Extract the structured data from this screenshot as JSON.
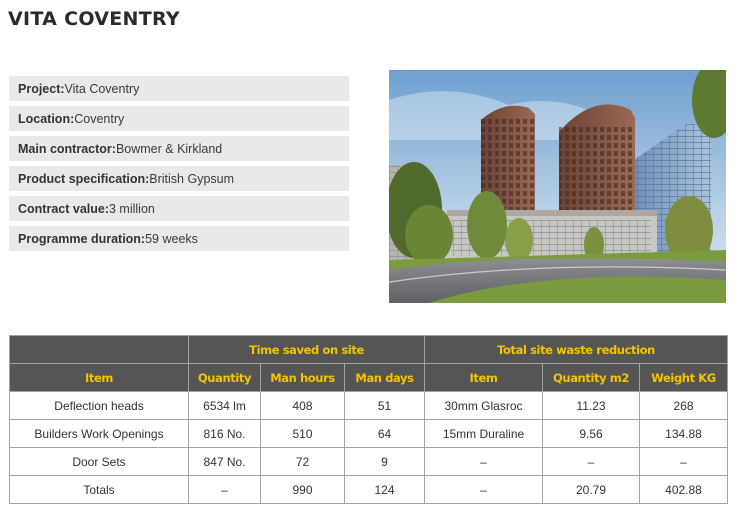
{
  "title": "VITA COVENTRY",
  "info": [
    {
      "label": "Project:",
      "value": " Vita Coventry"
    },
    {
      "label": "Location:",
      "value": "Coventry"
    },
    {
      "label": "Main contractor:",
      "value": " Bowmer & Kirkland"
    },
    {
      "label": "Product specification:",
      "value": " British Gypsum"
    },
    {
      "label": "Contract value:",
      "value": " 3 million"
    },
    {
      "label": "Programme duration:",
      "value": " 59 weeks"
    }
  ],
  "table": {
    "group_headers": [
      "Time saved on site",
      "Total site waste reduction"
    ],
    "columns": [
      "Item",
      "Quantity",
      "Man hours",
      "Man days",
      "Item",
      "Quantity m2",
      "Weight KG"
    ],
    "rows": [
      [
        "Deflection heads",
        "6534 lm",
        "408",
        "51",
        "30mm Glasroc",
        "11.23",
        "268"
      ],
      [
        "Builders Work Openings",
        "816 No.",
        "510",
        "64",
        "15mm Duraline",
        "9.56",
        "134.88"
      ],
      [
        "Door Sets",
        "847 No.",
        "72",
        "9",
        "–",
        "–",
        "–"
      ],
      [
        "Totals",
        "–",
        "990",
        "124",
        "–",
        "20.79",
        "402.88"
      ]
    ]
  },
  "colors": {
    "header_bg": "#555555",
    "header_text": "#f5c400",
    "info_bg": "#e9e9e9"
  }
}
